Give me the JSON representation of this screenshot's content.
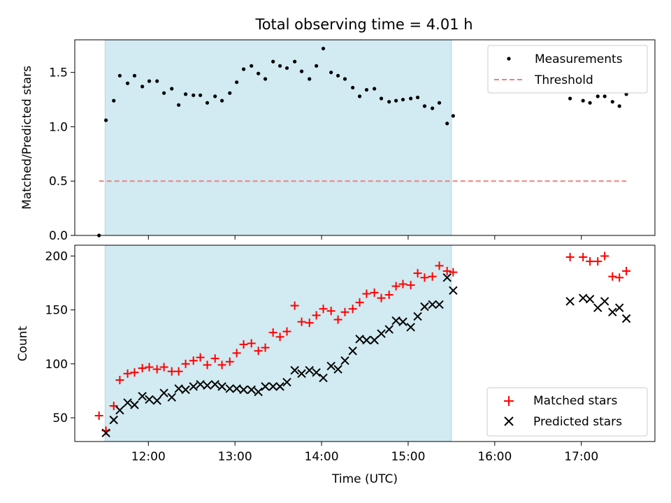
{
  "figure_title": "Total observing time = 4.01 h",
  "chart_data": [
    {
      "type": "scatter",
      "title": "Total observing time = 4.01 h",
      "xlabel": "",
      "ylabel": "Matched/Predicted stars",
      "x_units": "hours UTC (decimal)",
      "xlim": [
        11.15,
        17.85
      ],
      "ylim": [
        0,
        1.8
      ],
      "yticks": [
        0.0,
        0.5,
        1.0,
        1.5
      ],
      "ytick_labels": [
        "0.0",
        "0.5",
        "1.0",
        "1.5"
      ],
      "grid": false,
      "legend_position": "top-right",
      "shaded_interval": {
        "start": 11.5,
        "end": 15.5,
        "color": "#add8e6"
      },
      "series": [
        {
          "name": "Measurements",
          "kind": "dots",
          "color": "#000000",
          "x": [
            11.43,
            11.51,
            11.6,
            11.67,
            11.76,
            11.84,
            11.93,
            12.01,
            12.1,
            12.18,
            12.27,
            12.35,
            12.43,
            12.52,
            12.6,
            12.68,
            12.77,
            12.85,
            12.94,
            13.02,
            13.1,
            13.19,
            13.27,
            13.35,
            13.44,
            13.52,
            13.6,
            13.69,
            13.77,
            13.86,
            13.94,
            14.02,
            14.11,
            14.19,
            14.27,
            14.36,
            14.44,
            14.52,
            14.61,
            14.69,
            14.78,
            14.86,
            14.94,
            15.03,
            15.11,
            15.19,
            15.28,
            15.36,
            15.45,
            15.52,
            16.87,
            17.02,
            17.1,
            17.19,
            17.27,
            17.36,
            17.44,
            17.52
          ],
          "y": [
            0.0,
            1.06,
            1.24,
            1.47,
            1.4,
            1.47,
            1.37,
            1.42,
            1.42,
            1.31,
            1.35,
            1.2,
            1.3,
            1.29,
            1.29,
            1.22,
            1.28,
            1.24,
            1.31,
            1.41,
            1.53,
            1.56,
            1.49,
            1.44,
            1.6,
            1.56,
            1.54,
            1.6,
            1.51,
            1.44,
            1.56,
            1.72,
            1.5,
            1.47,
            1.44,
            1.36,
            1.28,
            1.34,
            1.35,
            1.26,
            1.23,
            1.24,
            1.25,
            1.26,
            1.27,
            1.19,
            1.17,
            1.22,
            1.03,
            1.1,
            1.26,
            1.24,
            1.22,
            1.28,
            1.28,
            1.23,
            1.19,
            1.3
          ]
        },
        {
          "name": "Threshold",
          "kind": "dashed-line",
          "color": "#f08080",
          "x": [
            11.43,
            17.52
          ],
          "y": [
            0.5,
            0.5
          ]
        }
      ]
    },
    {
      "type": "scatter",
      "title": "",
      "xlabel": "Time (UTC)",
      "ylabel": "Count",
      "x_units": "hours UTC (decimal)",
      "xlim": [
        11.15,
        17.85
      ],
      "ylim": [
        28,
        210
      ],
      "yticks": [
        50,
        100,
        150,
        200
      ],
      "ytick_labels": [
        "50",
        "100",
        "150",
        "200"
      ],
      "xticks": [
        12,
        13,
        14,
        15,
        16,
        17
      ],
      "xtick_labels": [
        "12:00",
        "13:00",
        "14:00",
        "15:00",
        "16:00",
        "17:00"
      ],
      "grid": false,
      "legend_position": "bottom-right",
      "shaded_interval": {
        "start": 11.5,
        "end": 15.5,
        "color": "#add8e6"
      },
      "series": [
        {
          "name": "Matched stars",
          "kind": "plus",
          "color": "#ff0000",
          "x": [
            11.43,
            11.51,
            11.6,
            11.67,
            11.76,
            11.84,
            11.93,
            12.01,
            12.1,
            12.18,
            12.27,
            12.35,
            12.43,
            12.52,
            12.6,
            12.68,
            12.77,
            12.85,
            12.94,
            13.02,
            13.1,
            13.19,
            13.27,
            13.35,
            13.44,
            13.52,
            13.6,
            13.69,
            13.77,
            13.86,
            13.94,
            14.02,
            14.11,
            14.19,
            14.27,
            14.36,
            14.44,
            14.52,
            14.61,
            14.69,
            14.78,
            14.86,
            14.94,
            15.03,
            15.11,
            15.19,
            15.28,
            15.36,
            15.45,
            15.52,
            16.87,
            17.02,
            17.1,
            17.19,
            17.27,
            17.36,
            17.44,
            17.52
          ],
          "y": [
            52,
            38,
            61,
            85,
            91,
            92,
            96,
            97,
            95,
            97,
            93,
            93,
            100,
            103,
            106,
            99,
            105,
            99,
            102,
            110,
            118,
            119,
            112,
            115,
            129,
            125,
            130,
            154,
            139,
            138,
            145,
            151,
            149,
            141,
            148,
            151,
            157,
            165,
            166,
            161,
            164,
            172,
            174,
            173,
            184,
            180,
            181,
            191,
            186,
            185,
            199,
            199,
            195,
            195,
            200,
            181,
            180,
            186
          ]
        },
        {
          "name": "Predicted stars",
          "kind": "x",
          "color": "#000000",
          "x": [
            11.51,
            11.6,
            11.67,
            11.76,
            11.84,
            11.93,
            12.01,
            12.1,
            12.18,
            12.27,
            12.35,
            12.43,
            12.52,
            12.6,
            12.68,
            12.77,
            12.85,
            12.94,
            13.02,
            13.1,
            13.19,
            13.27,
            13.35,
            13.44,
            13.52,
            13.6,
            13.69,
            13.77,
            13.86,
            13.94,
            14.02,
            14.11,
            14.19,
            14.27,
            14.36,
            14.44,
            14.52,
            14.61,
            14.69,
            14.78,
            14.86,
            14.94,
            15.03,
            15.11,
            15.19,
            15.28,
            15.36,
            15.45,
            15.52,
            16.87,
            17.02,
            17.1,
            17.19,
            17.27,
            17.36,
            17.44,
            17.52
          ],
          "y": [
            36,
            48,
            57,
            64,
            62,
            70,
            67,
            66,
            73,
            69,
            77,
            76,
            79,
            81,
            80,
            81,
            79,
            77,
            77,
            76,
            76,
            74,
            79,
            79,
            79,
            83,
            94,
            91,
            94,
            92,
            87,
            98,
            95,
            103,
            112,
            123,
            122,
            122,
            128,
            132,
            140,
            139,
            134,
            144,
            153,
            155,
            155,
            180,
            168,
            158,
            161,
            160,
            152,
            158,
            148,
            152,
            142
          ]
        }
      ]
    }
  ]
}
